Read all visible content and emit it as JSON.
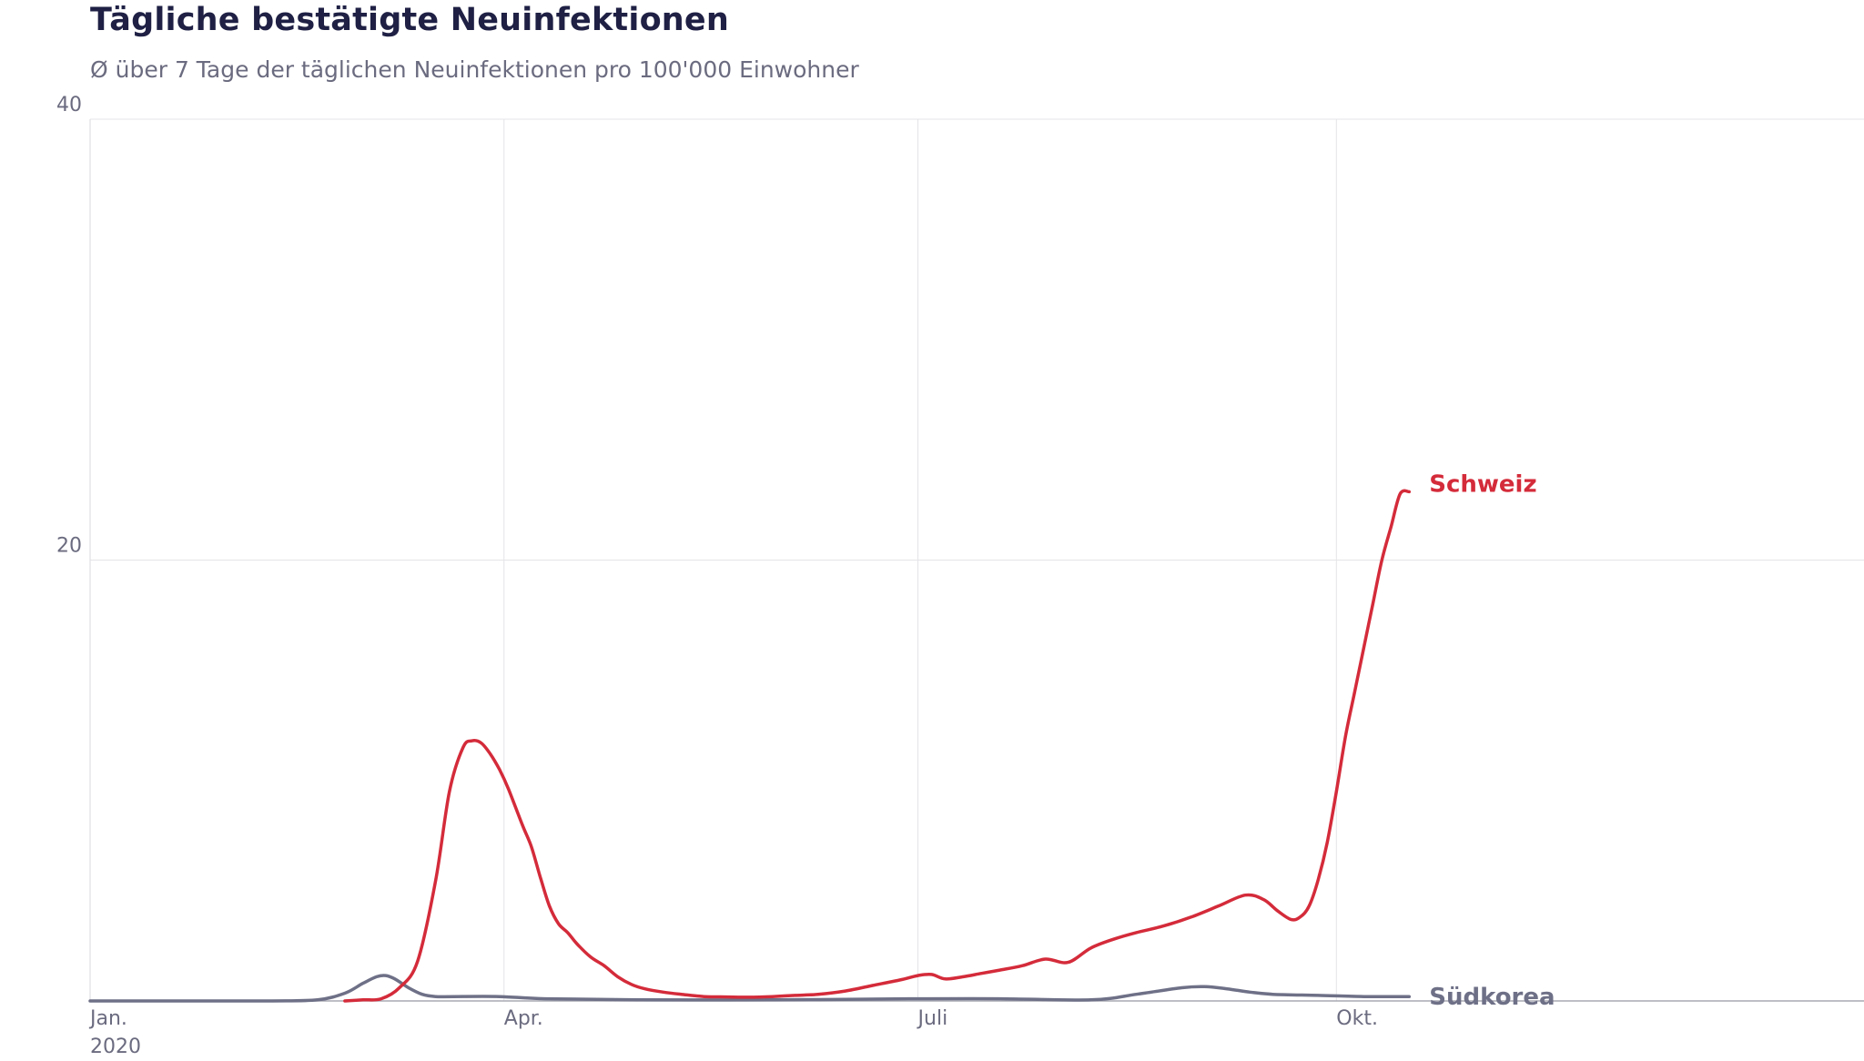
{
  "chart_data": {
    "type": "line",
    "title": "Tägliche bestätigte Neuinfektionen",
    "subtitle": "Ø über 7 Tage der täglichen Neuinfektionen pro 100'000 Einwohner",
    "xlabel": "",
    "ylabel": "",
    "xlim": [
      0,
      390
    ],
    "ylim": [
      0,
      40
    ],
    "y_ticks": [
      {
        "value": 20,
        "label": "20"
      },
      {
        "value": 40,
        "label": "40"
      }
    ],
    "x_ticks": [
      {
        "value": 0,
        "label": "Jan.",
        "sublabel": "2020"
      },
      {
        "value": 91,
        "label": "Apr."
      },
      {
        "value": 182,
        "label": "Juli"
      },
      {
        "value": 274,
        "label": "Okt."
      }
    ],
    "grid": true,
    "series": [
      {
        "name": "Schweiz",
        "color": "#d42b3a",
        "x": [
          56,
          60,
          64,
          68,
          72,
          76,
          79,
          82,
          84,
          86,
          88,
          90,
          92,
          95,
          97,
          99,
          101,
          103,
          105,
          107,
          110,
          113,
          116,
          119,
          122,
          126,
          130,
          135,
          140,
          145,
          150,
          155,
          160,
          166,
          172,
          178,
          182,
          185,
          188,
          192,
          196,
          200,
          205,
          210,
          215,
          220,
          225,
          230,
          236,
          242,
          248,
          254,
          258,
          261,
          264,
          266,
          268,
          270,
          272,
          274,
          276,
          278,
          280,
          282,
          284,
          286,
          288,
          290
        ],
        "values": [
          0,
          0.05,
          0.1,
          0.6,
          1.8,
          5.5,
          9.5,
          11.5,
          11.8,
          11.7,
          11.2,
          10.5,
          9.6,
          8.0,
          7.0,
          5.6,
          4.3,
          3.5,
          3.1,
          2.6,
          2.0,
          1.6,
          1.1,
          0.75,
          0.55,
          0.4,
          0.3,
          0.2,
          0.18,
          0.17,
          0.2,
          0.25,
          0.3,
          0.45,
          0.7,
          0.95,
          1.15,
          1.2,
          1.0,
          1.1,
          1.25,
          1.4,
          1.6,
          1.9,
          1.75,
          2.4,
          2.8,
          3.1,
          3.4,
          3.8,
          4.3,
          4.8,
          4.6,
          4.1,
          3.7,
          3.8,
          4.3,
          5.5,
          7.2,
          9.5,
          12.0,
          14.0,
          16.0,
          18.0,
          20.0,
          21.5,
          23.0,
          23.1
        ],
        "label": "Schweiz"
      },
      {
        "name": "Südkorea",
        "color": "#6e7087",
        "x": [
          0,
          20,
          40,
          50,
          56,
          60,
          63,
          65,
          67,
          70,
          73,
          76,
          80,
          90,
          100,
          120,
          150,
          180,
          200,
          220,
          230,
          240,
          245,
          250,
          255,
          260,
          270,
          280,
          290
        ],
        "values": [
          0,
          0,
          0,
          0.05,
          0.35,
          0.8,
          1.1,
          1.15,
          1.0,
          0.6,
          0.3,
          0.2,
          0.2,
          0.2,
          0.1,
          0.05,
          0.05,
          0.1,
          0.1,
          0.05,
          0.3,
          0.6,
          0.65,
          0.55,
          0.4,
          0.3,
          0.25,
          0.2,
          0.2
        ],
        "label": "Südkorea"
      }
    ]
  }
}
